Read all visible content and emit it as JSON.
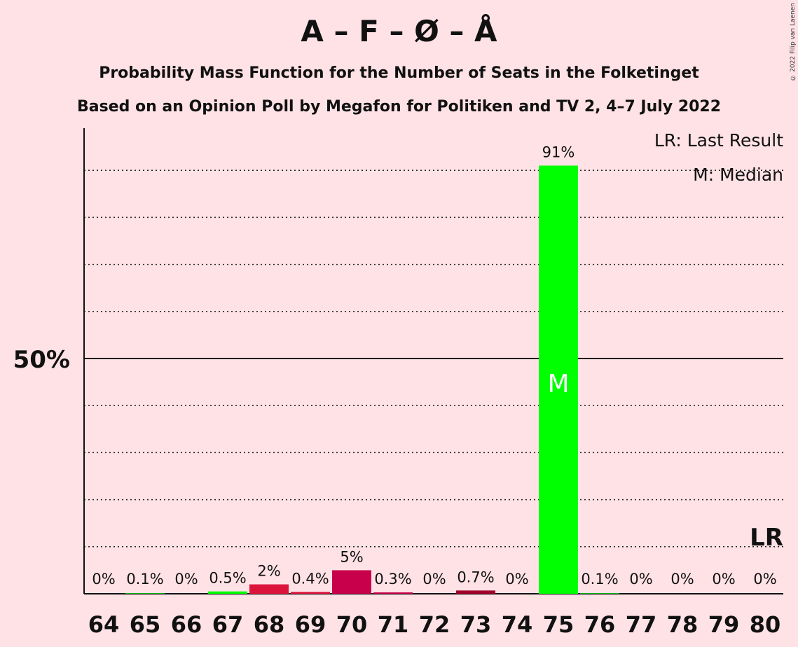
{
  "chart_data": {
    "type": "bar",
    "title": "A – F – Ø – Å",
    "subtitle": "Probability Mass Function for the Number of Seats in the Folketinget",
    "subtitle2": "Based on an Opinion Poll by Megafon for Politiken and TV 2, 4–7 July 2022",
    "copyright": "© 2022 Filip van Laenen",
    "categories": [
      "64",
      "65",
      "66",
      "67",
      "68",
      "69",
      "70",
      "71",
      "72",
      "73",
      "74",
      "75",
      "76",
      "77",
      "78",
      "79",
      "80"
    ],
    "values": [
      0,
      0.1,
      0,
      0.5,
      2,
      0.4,
      5,
      0.3,
      0,
      0.7,
      0,
      91,
      0.1,
      0,
      0,
      0,
      0
    ],
    "labels": [
      "0%",
      "0.1%",
      "0%",
      "0.5%",
      "2%",
      "0.4%",
      "5%",
      "0.3%",
      "0%",
      "0.7%",
      "0%",
      "91%",
      "0.1%",
      "0%",
      "0%",
      "0%",
      "0%"
    ],
    "bar_colors": [
      "#00FF00",
      "#00FF00",
      "#00FF00",
      "#00FF00",
      "#DC143C",
      "#DC143C",
      "#C8004C",
      "#C8004C",
      "#C8004C",
      "#A0002A",
      "#00FF00",
      "#00FF00",
      "#00FF00",
      "#00FF00",
      "#00FF00",
      "#00FF00",
      "#00FF00"
    ],
    "ytick_label": "50%",
    "ylim": [
      0,
      100
    ],
    "grid": true,
    "median_category": "75",
    "median_marker": "M",
    "last_result_category": "80",
    "last_result_marker": "LR",
    "legend": {
      "position": "top-right",
      "items": [
        "LR: Last Result",
        "M: Median"
      ]
    }
  }
}
